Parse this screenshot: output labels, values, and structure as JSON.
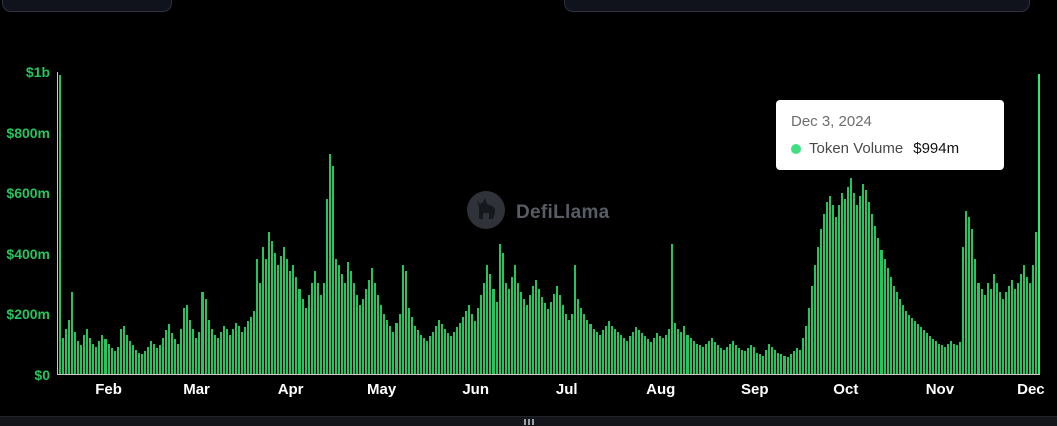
{
  "watermark": {
    "text": "DefiLlama"
  },
  "tooltip": {
    "date": "Dec 3, 2024",
    "series_label": "Token Volume",
    "value": "$994m"
  },
  "colors": {
    "bar_green": "#22c55e",
    "dot_green": "#3fe081",
    "label_green": "#22c55e",
    "axis_line": "#c9c9c9",
    "month_label": "#ffffff",
    "bg": "#000000"
  },
  "chart_data": {
    "type": "bar",
    "title": "",
    "series_name": "Token Volume",
    "unit": "$ millions",
    "ylim": [
      0,
      1000
    ],
    "grid": false,
    "legend": false,
    "highlight_point": {
      "date": "Dec 3, 2024",
      "value": 994
    },
    "y_ticks": [
      {
        "label": "$0",
        "value": 0
      },
      {
        "label": "$200m",
        "value": 200
      },
      {
        "label": "$400m",
        "value": 400
      },
      {
        "label": "$600m",
        "value": 600
      },
      {
        "label": "$800m",
        "value": 800
      },
      {
        "label": "$1b",
        "value": 1000
      }
    ],
    "month_ticks": [
      {
        "label": "Feb",
        "index": 17
      },
      {
        "label": "Mar",
        "index": 46
      },
      {
        "label": "Apr",
        "index": 77
      },
      {
        "label": "May",
        "index": 107
      },
      {
        "label": "Jun",
        "index": 138
      },
      {
        "label": "Jul",
        "index": 168
      },
      {
        "label": "Aug",
        "index": 199
      },
      {
        "label": "Sep",
        "index": 230
      },
      {
        "label": "Oct",
        "index": 260
      },
      {
        "label": "Nov",
        "index": 291
      },
      {
        "label": "Dec",
        "index": 321
      }
    ],
    "values": [
      990,
      120,
      150,
      180,
      270,
      140,
      110,
      95,
      130,
      150,
      120,
      100,
      90,
      110,
      130,
      115,
      100,
      85,
      75,
      90,
      150,
      160,
      130,
      110,
      95,
      80,
      70,
      65,
      75,
      90,
      110,
      100,
      85,
      95,
      120,
      145,
      165,
      135,
      115,
      100,
      150,
      220,
      230,
      180,
      150,
      120,
      140,
      270,
      250,
      180,
      150,
      130,
      120,
      140,
      160,
      150,
      130,
      150,
      170,
      160,
      140,
      155,
      175,
      190,
      210,
      380,
      300,
      420,
      380,
      470,
      440,
      400,
      360,
      390,
      420,
      380,
      340,
      360,
      320,
      280,
      250,
      220,
      260,
      300,
      340,
      300,
      260,
      300,
      580,
      730,
      690,
      380,
      360,
      330,
      300,
      370,
      340,
      300,
      260,
      230,
      250,
      280,
      310,
      350,
      300,
      260,
      230,
      200,
      180,
      160,
      140,
      170,
      200,
      360,
      340,
      220,
      190,
      160,
      145,
      130,
      120,
      110,
      125,
      140,
      160,
      180,
      165,
      150,
      135,
      125,
      140,
      155,
      170,
      190,
      210,
      230,
      200,
      175,
      220,
      260,
      300,
      360,
      330,
      280,
      240,
      430,
      400,
      300,
      280,
      320,
      360,
      300,
      270,
      250,
      230,
      260,
      290,
      310,
      280,
      255,
      235,
      215,
      240,
      265,
      290,
      260,
      230,
      200,
      180,
      200,
      360,
      250,
      220,
      200,
      180,
      165,
      150,
      140,
      130,
      145,
      160,
      175,
      160,
      150,
      140,
      130,
      120,
      110,
      125,
      140,
      155,
      145,
      135,
      125,
      115,
      105,
      120,
      135,
      125,
      120,
      130,
      150,
      430,
      170,
      150,
      140,
      160,
      130,
      120,
      110,
      100,
      95,
      90,
      100,
      110,
      120,
      105,
      95,
      85,
      80,
      90,
      100,
      110,
      95,
      85,
      80,
      75,
      85,
      95,
      90,
      70,
      65,
      60,
      80,
      100,
      90,
      80,
      70,
      65,
      60,
      55,
      65,
      75,
      85,
      80,
      120,
      160,
      220,
      290,
      360,
      420,
      480,
      530,
      570,
      590,
      560,
      520,
      560,
      600,
      580,
      620,
      650,
      600,
      560,
      590,
      630,
      610,
      570,
      530,
      490,
      450,
      410,
      380,
      350,
      320,
      290,
      270,
      250,
      230,
      210,
      195,
      185,
      175,
      165,
      155,
      145,
      135,
      125,
      115,
      108,
      100,
      95,
      90,
      100,
      110,
      100,
      95,
      105,
      420,
      540,
      520,
      480,
      380,
      300,
      280,
      260,
      300,
      280,
      330,
      300,
      270,
      250,
      270,
      290,
      310,
      280,
      300,
      330,
      360,
      320,
      300,
      360,
      470,
      994
    ]
  }
}
